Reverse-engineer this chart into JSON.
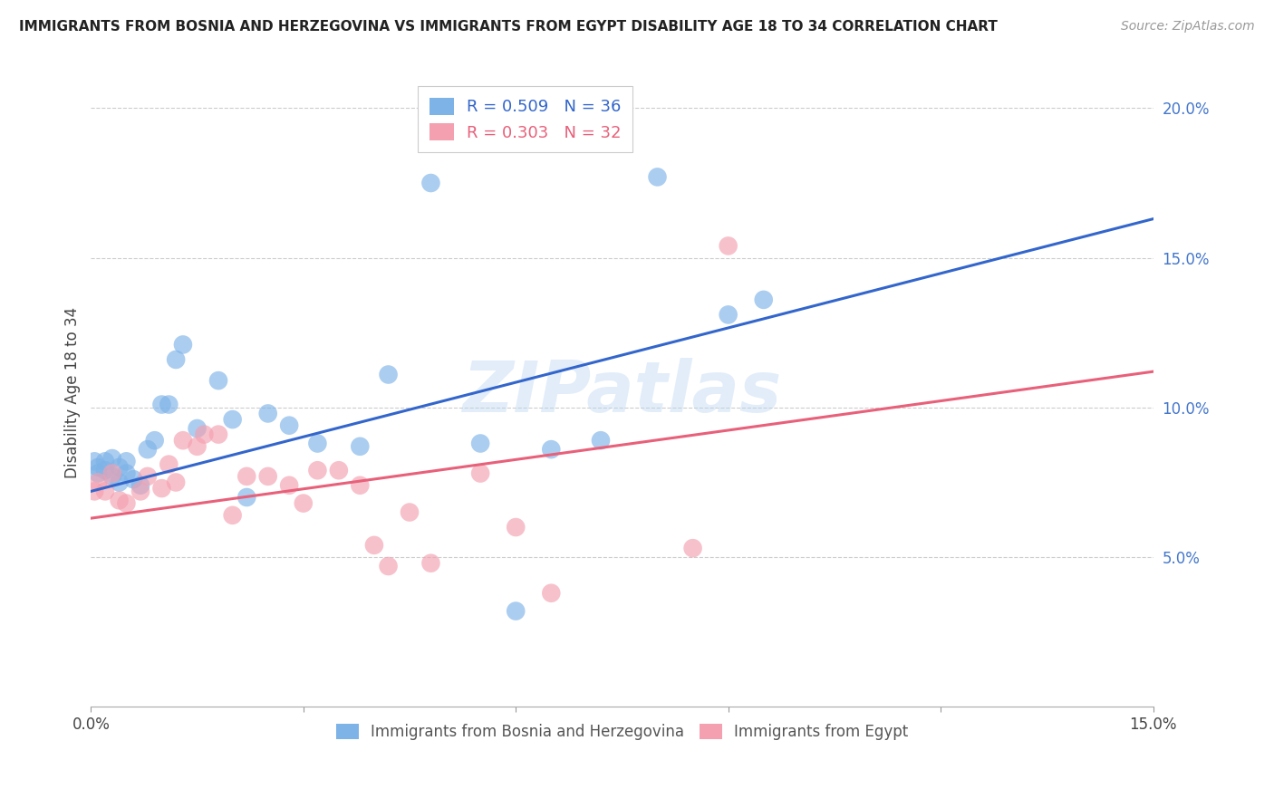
{
  "title": "IMMIGRANTS FROM BOSNIA AND HERZEGOVINA VS IMMIGRANTS FROM EGYPT DISABILITY AGE 18 TO 34 CORRELATION CHART",
  "source": "Source: ZipAtlas.com",
  "ylabel": "Disability Age 18 to 34",
  "xlabel_legend1": "Immigrants from Bosnia and Herzegovina",
  "xlabel_legend2": "Immigrants from Egypt",
  "xmin": 0.0,
  "xmax": 0.15,
  "ymin": 0.0,
  "ymax": 0.21,
  "R_blue": 0.509,
  "N_blue": 36,
  "R_pink": 0.303,
  "N_pink": 32,
  "color_blue": "#7EB3E8",
  "color_pink": "#F4A0B0",
  "line_blue": "#3366CC",
  "line_pink": "#E8607A",
  "watermark": "ZIPatlas",
  "blue_x": [
    0.0005,
    0.001,
    0.001,
    0.002,
    0.002,
    0.003,
    0.003,
    0.004,
    0.004,
    0.005,
    0.005,
    0.006,
    0.007,
    0.008,
    0.009,
    0.01,
    0.011,
    0.012,
    0.013,
    0.015,
    0.018,
    0.02,
    0.022,
    0.025,
    0.028,
    0.032,
    0.038,
    0.042,
    0.048,
    0.055,
    0.06,
    0.065,
    0.072,
    0.08,
    0.09,
    0.095
  ],
  "blue_y": [
    0.082,
    0.08,
    0.078,
    0.082,
    0.079,
    0.083,
    0.077,
    0.08,
    0.075,
    0.082,
    0.078,
    0.076,
    0.074,
    0.086,
    0.089,
    0.101,
    0.101,
    0.116,
    0.121,
    0.093,
    0.109,
    0.096,
    0.07,
    0.098,
    0.094,
    0.088,
    0.087,
    0.111,
    0.175,
    0.088,
    0.032,
    0.086,
    0.089,
    0.177,
    0.131,
    0.136
  ],
  "pink_x": [
    0.0005,
    0.001,
    0.002,
    0.003,
    0.004,
    0.005,
    0.007,
    0.008,
    0.01,
    0.011,
    0.012,
    0.013,
    0.015,
    0.016,
    0.018,
    0.02,
    0.022,
    0.025,
    0.028,
    0.03,
    0.032,
    0.035,
    0.038,
    0.04,
    0.042,
    0.045,
    0.048,
    0.055,
    0.06,
    0.065,
    0.085,
    0.09
  ],
  "pink_y": [
    0.072,
    0.075,
    0.072,
    0.078,
    0.069,
    0.068,
    0.072,
    0.077,
    0.073,
    0.081,
    0.075,
    0.089,
    0.087,
    0.091,
    0.091,
    0.064,
    0.077,
    0.077,
    0.074,
    0.068,
    0.079,
    0.079,
    0.074,
    0.054,
    0.047,
    0.065,
    0.048,
    0.078,
    0.06,
    0.038,
    0.053,
    0.154
  ],
  "blue_line_x0": 0.0,
  "blue_line_y0": 0.072,
  "blue_line_x1": 0.15,
  "blue_line_y1": 0.163,
  "pink_line_x0": 0.0,
  "pink_line_y0": 0.063,
  "pink_line_x1": 0.15,
  "pink_line_y1": 0.112
}
